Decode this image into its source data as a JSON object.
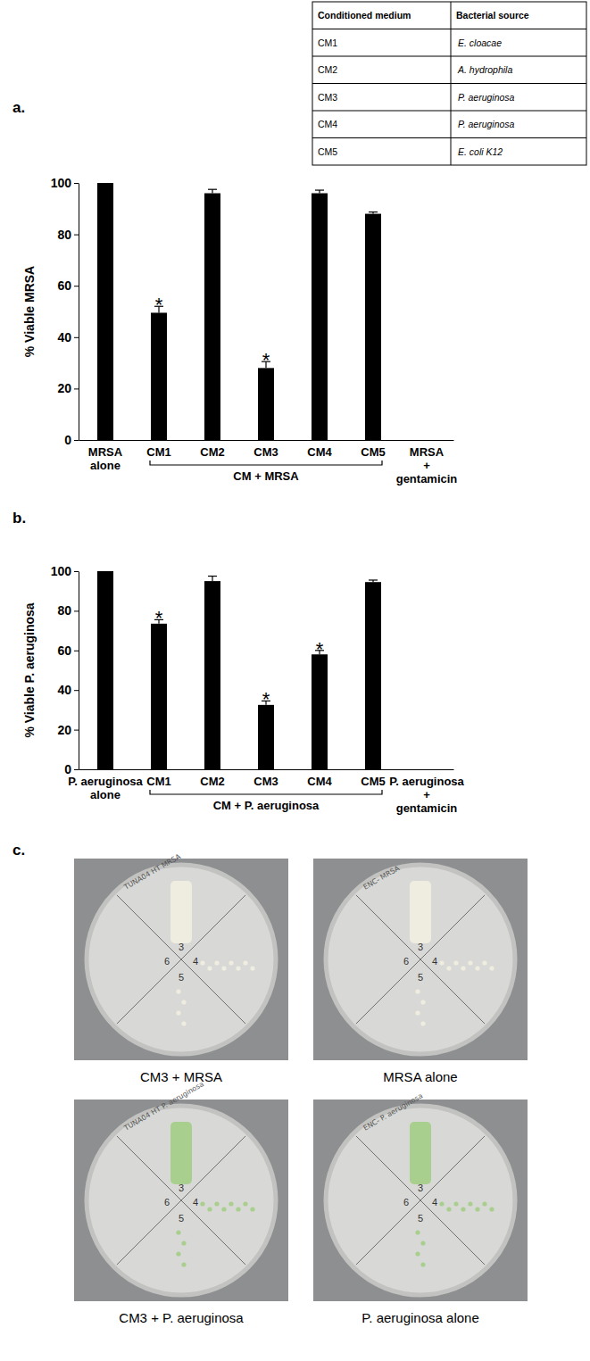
{
  "table": {
    "header": [
      "Conditioned medium",
      "Bacterial source"
    ],
    "rows": [
      [
        "CM1",
        "E. cloacae"
      ],
      [
        "CM2",
        "A. hydrophila"
      ],
      [
        "CM3",
        "P. aeruginosa"
      ],
      [
        "CM4",
        "P. aeruginosa"
      ],
      [
        "CM5",
        "E. coli K12"
      ]
    ]
  },
  "chart_data": [
    {
      "type": "bar",
      "title": "a.",
      "y_label": "% Viable MRSA",
      "categories": [
        "MRSA\nalone",
        "CM1",
        "CM2",
        "CM3",
        "CM4",
        "CM5",
        "MRSA\n+\ngentamicin"
      ],
      "values": [
        100,
        49.5,
        96,
        28,
        96,
        88,
        0
      ],
      "errors": [
        null,
        2.5,
        1.5,
        2.5,
        1.2,
        0.7,
        null
      ],
      "significance": [
        null,
        "*",
        null,
        "*",
        null,
        null,
        null
      ],
      "bracket": {
        "label": "CM + MRSA",
        "from": "CM1",
        "to": "CM5"
      },
      "color": "#000000",
      "ylim": [
        0,
        100
      ],
      "yticks": [
        0,
        20,
        40,
        60,
        80,
        100
      ]
    },
    {
      "type": "bar",
      "title": "b.",
      "y_label": "% Viable P. aeruginosa",
      "categories": [
        "P. aeruginosa\nalone",
        "CM1",
        "CM2",
        "CM3",
        "CM4",
        "CM5",
        "P. aeruginosa\n+\ngentamicin"
      ],
      "values": [
        100,
        73.5,
        95,
        32.5,
        58,
        94.5,
        0
      ],
      "errors": [
        null,
        2,
        2.5,
        2,
        2,
        1,
        null
      ],
      "significance": [
        null,
        "*",
        null,
        "*",
        "*",
        null,
        null
      ],
      "bracket": {
        "label": "CM + P. aeruginosa",
        "from": "CM1",
        "to": "CM5"
      },
      "color": "#000000",
      "ylim": [
        0,
        100
      ],
      "yticks": [
        0,
        20,
        40,
        60,
        80,
        100
      ]
    }
  ],
  "panel_c": {
    "title": "c.",
    "plates": [
      {
        "caption": "CM3 + MRSA",
        "label": "TUNA04 HT MRSA",
        "sectors": [
          "3",
          "4",
          "5",
          "6"
        ],
        "color": "#efece0"
      },
      {
        "caption": "MRSA alone",
        "label": "ENC- MRSA",
        "sectors": [
          "3",
          "4",
          "5",
          "6"
        ],
        "color": "#efece0"
      },
      {
        "caption": "CM3 + P. aeruginosa",
        "label": "TUNA04 HT P. aeruginosa",
        "sectors": [
          "3",
          "4",
          "5",
          "6"
        ],
        "color": "#a9cf8e"
      },
      {
        "caption": "P. aeruginosa alone",
        "label": "ENC- P. aeruginosa",
        "sectors": [
          "3",
          "4",
          "5",
          "6"
        ],
        "color": "#a9cf8e"
      }
    ]
  }
}
